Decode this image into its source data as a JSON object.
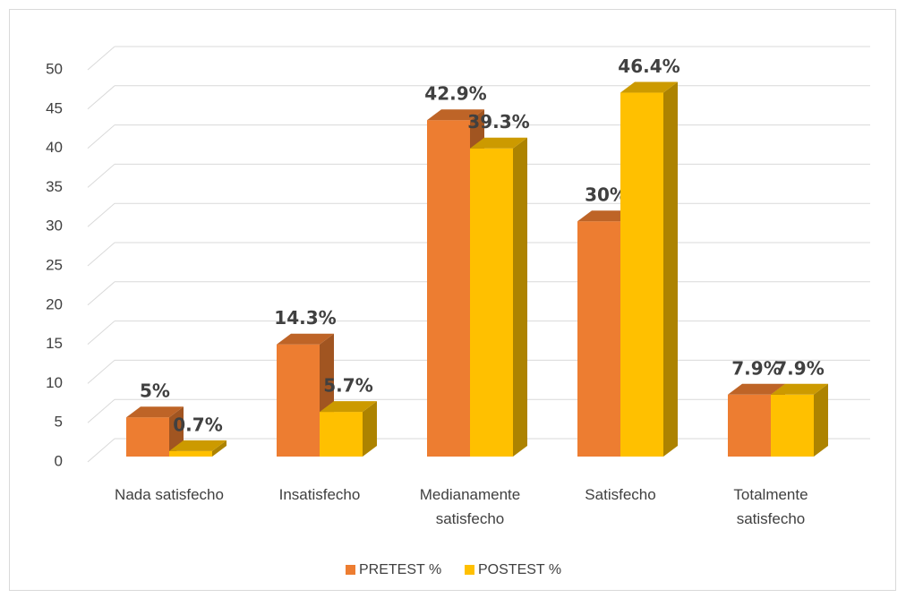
{
  "chart_data": {
    "type": "bar3d",
    "categories": [
      "Nada satisfecho",
      "Insatisfecho",
      "Medianamente satisfecho",
      "Satisfecho",
      "Totalmente satisfecho"
    ],
    "series": [
      {
        "name": "PRETEST %",
        "color": "#ed7d31",
        "values": [
          5,
          14.3,
          42.9,
          30,
          7.9
        ],
        "value_labels": [
          "5%",
          "14.3%",
          "42.9%",
          "30%",
          "7.9%"
        ]
      },
      {
        "name": "POSTEST %",
        "color": "#ffc000",
        "values": [
          0.7,
          5.7,
          39.3,
          46.4,
          7.9
        ],
        "value_labels": [
          "0.7%",
          "5.7%",
          "39.3%",
          "46.4%",
          "7.9%"
        ]
      }
    ],
    "ylim": [
      0,
      50
    ],
    "yticks": [
      0,
      5,
      10,
      15,
      20,
      25,
      30,
      35,
      40,
      45,
      50
    ],
    "grid": true,
    "legend": "bottom"
  }
}
